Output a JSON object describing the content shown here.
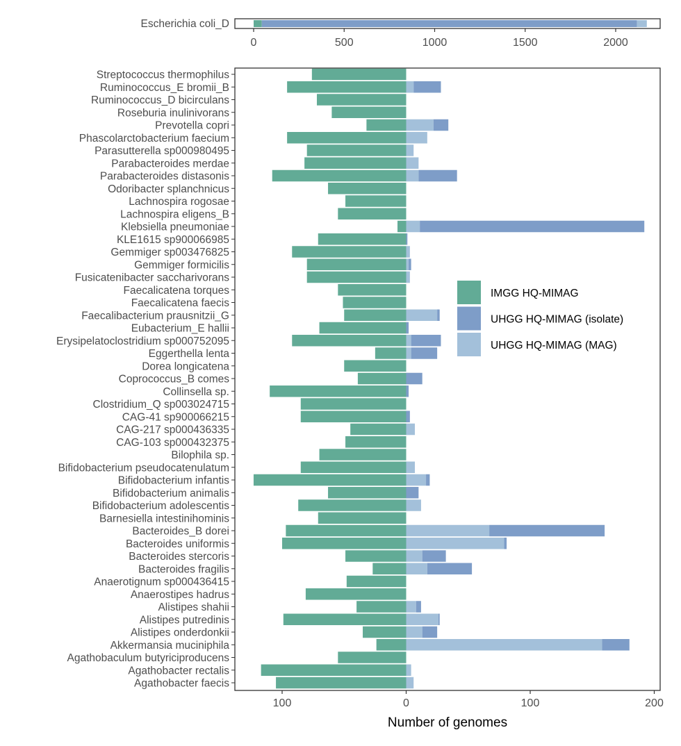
{
  "chart_data": [
    {
      "type": "bar",
      "orientation": "horizontal",
      "stacked": true,
      "categories": [
        "Escherichia coli_D"
      ],
      "series": [
        {
          "name": "IMGG HQ-MIMAG",
          "values": [
            45
          ]
        },
        {
          "name": "UHGG HQ-MIMAG (isolate)",
          "values": [
            2073
          ]
        },
        {
          "name": "UHGG HQ-MIMAG (MAG)",
          "values": [
            54
          ]
        }
      ],
      "xlim": [
        -50,
        2300
      ],
      "xticks": [
        0,
        500,
        1000,
        1500,
        2000
      ],
      "xtick_labels": [
        "0",
        "500",
        "1000",
        "1500",
        "2000"
      ]
    },
    {
      "type": "bar",
      "orientation": "horizontal",
      "diverging": true,
      "categories": [
        "Streptococcus thermophilus",
        "Ruminococcus_E bromii_B",
        "Ruminococcus_D bicirculans",
        "Roseburia inulinivorans",
        "Prevotella copri",
        "Phascolarctobacterium faecium",
        "Parasutterella sp000980495",
        "Parabacteroides merdae",
        "Parabacteroides distasonis",
        "Odoribacter splanchnicus",
        "Lachnospira rogosae",
        "Lachnospira eligens_B",
        "Klebsiella pneumoniae",
        "KLE1615 sp900066985",
        "Gemmiger sp003476825",
        "Gemmiger formicilis",
        "Fusicatenibacter saccharivorans",
        "Faecalicatena torques",
        "Faecalicatena faecis",
        "Faecalibacterium prausnitzii_G",
        "Eubacterium_E hallii",
        "Erysipelatoclostridium sp000752095",
        "Eggerthella lenta",
        "Dorea longicatena",
        "Coprococcus_B comes",
        "Collinsella sp.",
        "Clostridium_Q sp003024715",
        "CAG-41 sp900066215",
        "CAG-217 sp000436335",
        "CAG-103 sp000432375",
        "Bilophila sp.",
        "Bifidobacterium pseudocatenulatum",
        "Bifidobacterium infantis",
        "Bifidobacterium animalis",
        "Bifidobacterium adolescentis",
        "Barnesiella intestinihominis",
        "Bacteroides_B dorei",
        "Bacteroides uniformis",
        "Bacteroides stercoris",
        "Bacteroides fragilis",
        "Anaerotignum sp000436415",
        "Anaerostipes hadrus",
        "Alistipes shahii",
        "Alistipes putredinis",
        "Alistipes onderdonkii",
        "Akkermansia muciniphila",
        "Agathobaculum butyriciproducens",
        "Agathobacter rectalis",
        "Agathobacter faecis"
      ],
      "series": [
        {
          "name": "IMGG HQ-MIMAG",
          "side": "left",
          "values": [
            76,
            96,
            72,
            60,
            32,
            96,
            80,
            82,
            108,
            63,
            49,
            55,
            7,
            71,
            92,
            80,
            80,
            55,
            51,
            50,
            70,
            92,
            25,
            50,
            39,
            110,
            85,
            85,
            45,
            49,
            70,
            85,
            123,
            63,
            87,
            71,
            97,
            100,
            49,
            27,
            48,
            81,
            40,
            99,
            35,
            24,
            55,
            117,
            105
          ]
        },
        {
          "name": "UHGG HQ-MIMAG (MAG)",
          "side": "right",
          "values": [
            0,
            6,
            0,
            0,
            22,
            17,
            6,
            10,
            10,
            0,
            0,
            0,
            11,
            0,
            3,
            2,
            3,
            0,
            0,
            25,
            0,
            4,
            4,
            0,
            0,
            0,
            0,
            0,
            7,
            0,
            0,
            7,
            16,
            0,
            12,
            0,
            67,
            79,
            13,
            17,
            0,
            0,
            8,
            26,
            13,
            158,
            0,
            4,
            6
          ]
        },
        {
          "name": "UHGG HQ-MIMAG (isolate)",
          "side": "right",
          "values": [
            0,
            22,
            0,
            0,
            12,
            0,
            0,
            0,
            31,
            0,
            0,
            0,
            181,
            1,
            0,
            2,
            0,
            0,
            0,
            2,
            2,
            24,
            21,
            0,
            13,
            2,
            0,
            3,
            0,
            0,
            0,
            0,
            3,
            10,
            0,
            0,
            93,
            2,
            19,
            36,
            0,
            0,
            4,
            1,
            12,
            22,
            0,
            0,
            0
          ]
        }
      ],
      "xlim": [
        -133,
        207
      ],
      "xticks": [
        -100,
        0,
        100,
        200
      ],
      "xtick_labels": [
        "100",
        "0",
        "100",
        "200"
      ],
      "xlabel": "Number of genomes",
      "legend": {
        "placement": "right-middle",
        "entries": [
          "IMGG HQ-MIMAG",
          "UHGG HQ-MIMAG (isolate)",
          "UHGG HQ-MIMAG (MAG)"
        ]
      }
    }
  ],
  "colors": {
    "IMGG HQ-MIMAG": "#62AB96",
    "UHGG HQ-MIMAG (isolate)": "#7E9DC8",
    "UHGG HQ-MIMAG (MAG)": "#A3C0DA"
  }
}
